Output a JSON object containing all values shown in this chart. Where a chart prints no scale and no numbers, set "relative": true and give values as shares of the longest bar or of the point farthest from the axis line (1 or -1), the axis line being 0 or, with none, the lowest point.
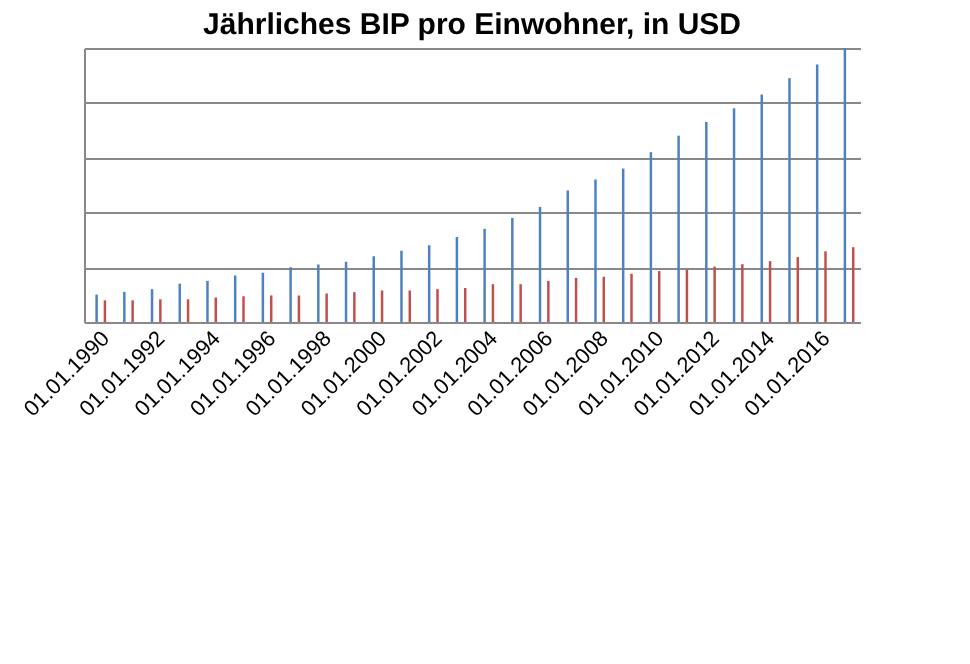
{
  "chart_data": {
    "type": "bar",
    "title": "Jährliches BIP pro Einwohner, in USD",
    "relative": true,
    "grid": "y",
    "categories": [
      "01.01.1990",
      null,
      "01.01.1992",
      null,
      "01.01.1994",
      null,
      "01.01.1996",
      null,
      "01.01.1998",
      null,
      "01.01.2000",
      null,
      "01.01.2002",
      null,
      "01.01.2004",
      null,
      "01.01.2006",
      null,
      "01.01.2008",
      null,
      "01.01.2010",
      null,
      "01.01.2012",
      null,
      "01.01.2014",
      null,
      "01.01.2016",
      null
    ],
    "series": [
      {
        "color": "#4f81bd",
        "values": [
          0.1,
          0.11,
          0.12,
          0.14,
          0.15,
          0.17,
          0.18,
          0.2,
          0.21,
          0.22,
          0.24,
          0.26,
          0.28,
          0.31,
          0.34,
          0.38,
          0.42,
          0.48,
          0.52,
          0.56,
          0.62,
          0.68,
          0.73,
          0.78,
          0.83,
          0.89,
          0.94,
          1
        ]
      },
      {
        "color": "#c0504d",
        "values": [
          0.079,
          0.079,
          0.083,
          0.083,
          0.089,
          0.094,
          0.097,
          0.097,
          0.104,
          0.109,
          0.115,
          0.115,
          0.12,
          0.124,
          0.138,
          0.138,
          0.15,
          0.161,
          0.165,
          0.176,
          0.186,
          0.191,
          0.202,
          0.211,
          0.222,
          0.237,
          0.258,
          0.273
        ]
      }
    ]
  }
}
